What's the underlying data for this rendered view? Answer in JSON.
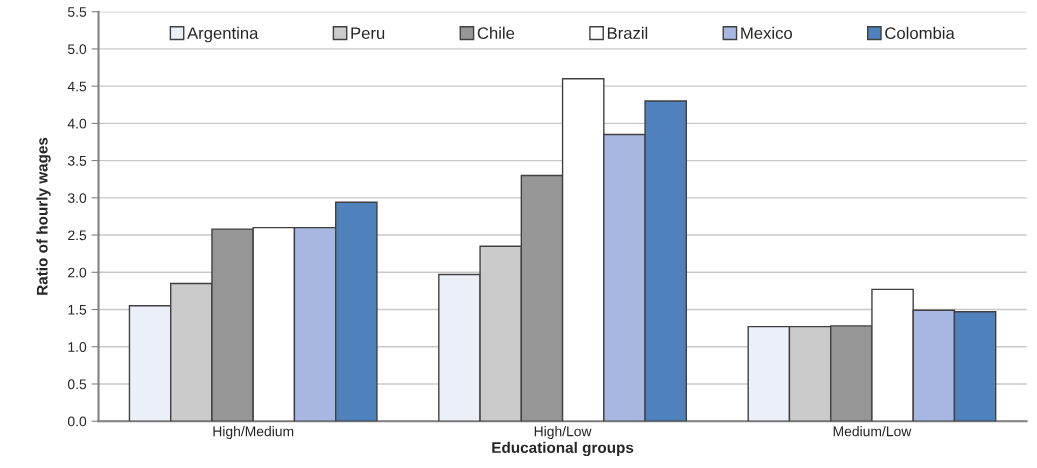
{
  "chart_data": {
    "type": "bar",
    "xlabel": "Educational groups",
    "ylabel": "Ratio of hourly wages",
    "categories": [
      "High/Medium",
      "High/Low",
      "Medium/Low"
    ],
    "series": [
      {
        "name": "Argentina",
        "color": "#ebeff8",
        "values": [
          1.55,
          1.97,
          1.27
        ]
      },
      {
        "name": "Peru",
        "color": "#cbcbcb",
        "values": [
          1.85,
          2.35,
          1.27
        ]
      },
      {
        "name": "Chile",
        "color": "#969696",
        "values": [
          2.58,
          3.3,
          1.28
        ]
      },
      {
        "name": "Brazil",
        "color": "#ffffff",
        "values": [
          2.6,
          4.6,
          1.77
        ]
      },
      {
        "name": "Mexico",
        "color": "#a7b7e1",
        "values": [
          2.6,
          3.85,
          1.49
        ]
      },
      {
        "name": "Colombia",
        "color": "#4f81bd",
        "values": [
          2.94,
          4.3,
          1.47
        ]
      }
    ],
    "ylim": [
      0,
      5.5
    ],
    "yticks": [
      {
        "value": 0,
        "label": "0.0"
      },
      0.5,
      {
        "value": 1,
        "label": "1.0"
      },
      1.5,
      {
        "value": 2,
        "label": "2.0"
      },
      2.5,
      {
        "value": 3,
        "label": "3.0"
      },
      3.5,
      {
        "value": 4,
        "label": "4.0"
      },
      4.5,
      {
        "value": 5,
        "label": "5.0"
      },
      5.5
    ],
    "grid": "y",
    "legend": "top"
  }
}
